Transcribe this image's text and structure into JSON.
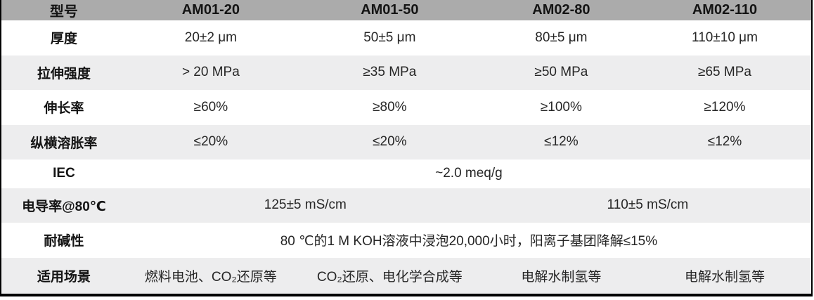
{
  "table": {
    "header": {
      "label": "型号",
      "columns": [
        "AM01-20",
        "AM01-50",
        "AM02-80",
        "AM02-110"
      ]
    },
    "rows": [
      {
        "label": "厚度",
        "cells": [
          "20±2 μm",
          "50±5 μm",
          "80±5 μm",
          "110±10 μm"
        ]
      },
      {
        "label": "拉伸强度",
        "cells": [
          "> 20 MPa",
          "≥35 MPa",
          "≥50 MPa",
          "≥65 MPa"
        ]
      },
      {
        "label": "伸长率",
        "cells": [
          "≥60%",
          "≥80%",
          "≥100%",
          "≥120%"
        ]
      },
      {
        "label": "纵横溶胀率",
        "cells": [
          "≤20%",
          "≤20%",
          "≤12%",
          "≤12%"
        ]
      },
      {
        "label": "IEC",
        "cells": [
          "~2.0 meq/g"
        ]
      },
      {
        "label": "电导率@80℃",
        "cells": [
          "125±5 mS/cm",
          "110±5 mS/cm"
        ]
      },
      {
        "label": "耐碱性",
        "cells": [
          "80 ℃的1 M KOH溶液中浸泡20,000小时，阳离子基团降解≤15%"
        ]
      },
      {
        "label": "适用场景",
        "cells": [
          "燃料电池、CO₂还原等",
          "CO₂还原、电化学合成等",
          "电解水制氢等",
          "电解水制氢等"
        ]
      }
    ],
    "colors": {
      "header_bg": "#ababab",
      "stripe_bg": "#ededee",
      "row_bg": "#ffffff",
      "border": "#000000",
      "text": "#262626",
      "label_text": "#141414",
      "header_text": "#141414"
    }
  }
}
